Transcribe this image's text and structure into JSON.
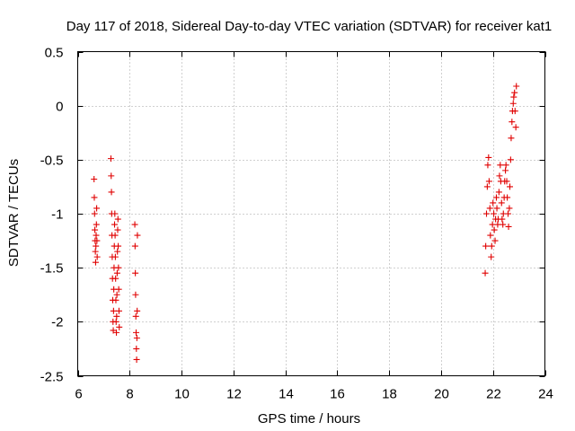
{
  "chart_data": {
    "type": "scatter",
    "title": "Day 117 of 2018, Sidereal Day-to-day VTEC variation (SDTVAR) for receiver kat1",
    "xlabel": "GPS time / hours",
    "ylabel": "SDTVAR / TECUs",
    "xlim": [
      6,
      24
    ],
    "ylim": [
      -2.5,
      0.5
    ],
    "xticks": [
      6,
      8,
      10,
      12,
      14,
      16,
      18,
      20,
      22,
      24
    ],
    "xtick_labels": [
      "6",
      "8",
      "10",
      "12",
      "14",
      "16",
      "18",
      "20",
      "22",
      "24"
    ],
    "yticks": [
      0.5,
      0,
      -0.5,
      -1,
      -1.5,
      -2,
      -2.5
    ],
    "ytick_labels": [
      "0.5",
      "0",
      "-0.5",
      "-1",
      "-1.5",
      "-2",
      "-2.5"
    ],
    "grid": true,
    "marker": "+",
    "marker_color": "#e00000",
    "series": [
      {
        "name": "SDTVAR",
        "x": [
          6.63,
          6.64,
          6.65,
          6.66,
          6.67,
          6.68,
          6.69,
          6.7,
          6.71,
          6.72,
          6.73,
          6.74,
          6.75,
          7.28,
          7.29,
          7.3,
          7.31,
          7.32,
          7.33,
          7.34,
          7.35,
          7.36,
          7.37,
          7.38,
          7.39,
          7.4,
          7.41,
          7.42,
          7.43,
          7.44,
          7.45,
          7.46,
          7.47,
          7.48,
          7.49,
          7.5,
          7.51,
          7.52,
          7.53,
          7.54,
          7.55,
          7.56,
          7.57,
          7.58,
          7.59,
          7.6,
          8.2,
          8.21,
          8.22,
          8.23,
          8.24,
          8.25,
          8.26,
          8.27,
          8.28,
          8.29,
          8.3,
          21.7,
          21.72,
          21.75,
          21.78,
          21.8,
          21.83,
          21.85,
          21.88,
          21.9,
          21.93,
          21.95,
          21.98,
          22.0,
          22.03,
          22.05,
          22.08,
          22.1,
          22.13,
          22.15,
          22.18,
          22.2,
          22.23,
          22.25,
          22.28,
          22.3,
          22.33,
          22.35,
          22.38,
          22.4,
          22.43,
          22.45,
          22.48,
          22.5,
          22.53,
          22.55,
          22.58,
          22.6,
          22.63,
          22.65,
          22.68,
          22.7,
          22.73,
          22.75,
          22.78,
          22.8,
          22.83,
          22.85,
          22.88,
          22.9
        ],
        "y": [
          -0.68,
          -0.85,
          -1.0,
          -1.15,
          -1.25,
          -1.35,
          -1.45,
          -1.3,
          -1.2,
          -1.1,
          -0.95,
          -1.25,
          -1.4,
          -0.49,
          -0.65,
          -0.8,
          -1.0,
          -1.2,
          -1.4,
          -1.6,
          -1.8,
          -2.0,
          -2.08,
          -1.9,
          -1.7,
          -1.5,
          -1.3,
          -1.1,
          -1.0,
          -1.2,
          -1.4,
          -1.6,
          -1.8,
          -2.0,
          -2.1,
          -1.95,
          -1.75,
          -1.55,
          -1.35,
          -1.15,
          -1.05,
          -1.3,
          -1.5,
          -1.7,
          -1.9,
          -2.05,
          -1.1,
          -1.3,
          -1.55,
          -1.75,
          -1.95,
          -2.1,
          -2.25,
          -2.35,
          -2.15,
          -1.9,
          -1.2,
          -1.55,
          -1.3,
          -1.0,
          -0.75,
          -0.55,
          -0.48,
          -0.7,
          -0.95,
          -1.2,
          -1.4,
          -1.3,
          -1.1,
          -0.9,
          -1.0,
          -1.15,
          -1.25,
          -1.05,
          -0.85,
          -0.95,
          -1.1,
          -1.05,
          -0.8,
          -0.65,
          -0.55,
          -0.7,
          -0.9,
          -1.05,
          -1.1,
          -1.0,
          -0.85,
          -0.7,
          -0.6,
          -0.55,
          -0.7,
          -0.85,
          -1.0,
          -1.12,
          -0.95,
          -0.75,
          -0.5,
          -0.3,
          -0.15,
          -0.05,
          0.02,
          0.08,
          0.12,
          -0.05,
          -0.2,
          0.18
        ]
      }
    ]
  }
}
